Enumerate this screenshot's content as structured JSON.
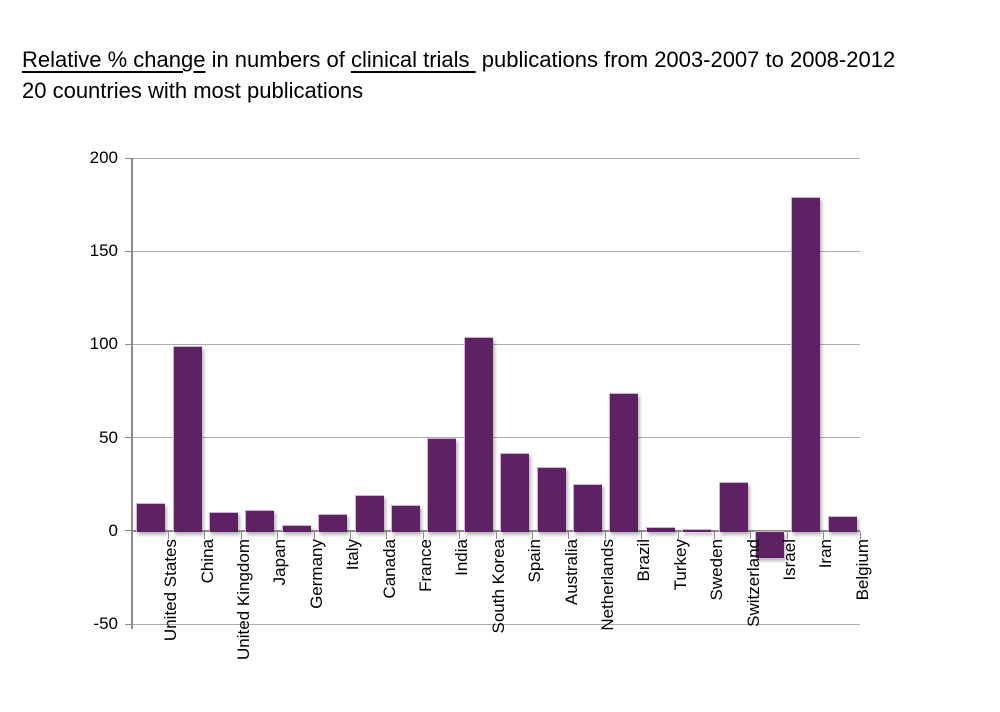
{
  "title": {
    "line1_parts": [
      {
        "text": "Relative % change",
        "underline": true
      },
      {
        "text": " in numbers of ",
        "underline": false
      },
      {
        "text": "clinical trials ",
        "underline": true
      },
      {
        "text": " publications from 2003-2007 to 2008-2012",
        "underline": false
      }
    ],
    "line2": "20 countries with most publications"
  },
  "chart_data": {
    "type": "bar",
    "title": "Relative % change in numbers of clinical trials publications from 2003-2007 to 2008-2012",
    "subtitle": "20 countries with most publications",
    "categories": [
      "United States",
      "China",
      "United Kingdom",
      "Japan",
      "Germany",
      "Italy",
      "Canada",
      "France",
      "India",
      "South Korea",
      "Spain",
      "Australia",
      "Netherlands",
      "Brazil",
      "Turkey",
      "Sweden",
      "Switzerland",
      "Israel",
      "Iran",
      "Belgium"
    ],
    "values": [
      15,
      99,
      10,
      11,
      3,
      9,
      19,
      14,
      50,
      104,
      42,
      34,
      25,
      74,
      2,
      1,
      26,
      -14,
      179,
      8
    ],
    "xlabel": "",
    "ylabel": "",
    "ylim": [
      -50,
      200
    ],
    "yticks": [
      200,
      150,
      100,
      50,
      0,
      -50
    ],
    "grid": true,
    "legend": "none",
    "bar_color": "#5E2164",
    "gridline_color": "#ADADAD",
    "axis_color": "#8A8A8A",
    "text_color": "#000000"
  }
}
